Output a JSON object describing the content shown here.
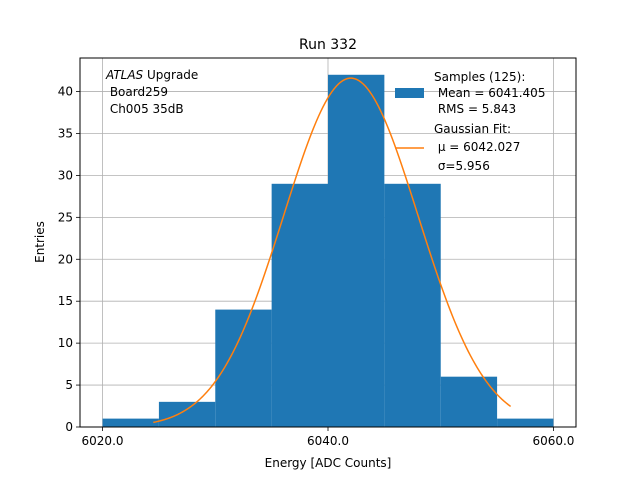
{
  "chart_data": {
    "type": "bar",
    "title": "Run 332",
    "xlabel": "Energy [ADC Counts]",
    "ylabel": "Entries",
    "xlim": [
      6018,
      6062
    ],
    "ylim": [
      0,
      44
    ],
    "xticks": [
      6020,
      6040,
      6060
    ],
    "xtick_labels": [
      "6020.0",
      "6040.0",
      "6060.0"
    ],
    "yticks": [
      0,
      5,
      10,
      15,
      20,
      25,
      30,
      35,
      40
    ],
    "ytick_labels": [
      "0",
      "5",
      "10",
      "15",
      "20",
      "25",
      "30",
      "35",
      "40"
    ],
    "grid": true,
    "bin_edges": [
      6020,
      6025,
      6030,
      6035,
      6040,
      6045,
      6050,
      6055,
      6060
    ],
    "values": [
      1,
      3,
      14,
      29,
      42,
      29,
      6,
      1
    ],
    "hist_color": "#1f77b4",
    "fit": {
      "mu": 6042.027,
      "sigma": 5.956,
      "amplitude": 41.6,
      "x_range": [
        6024.5,
        6056.2
      ],
      "color": "#ff7f0e"
    },
    "annotation": {
      "line1_italic": "ATLAS",
      "line1_rest": " Upgrade",
      "line2": " Board259",
      "line3": " Ch005 35dB"
    },
    "legend": {
      "position": "top-right",
      "hist_lines": [
        "Samples (125):",
        " Mean = 6041.405",
        " RMS = 5.843"
      ],
      "fit_lines": [
        "Gaussian Fit:",
        " μ = 6042.027",
        " σ=5.956"
      ]
    }
  }
}
